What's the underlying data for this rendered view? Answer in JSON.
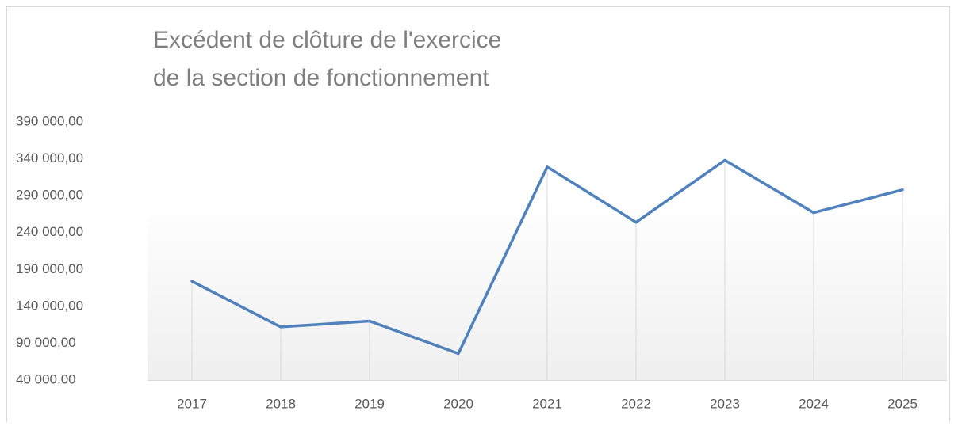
{
  "chart_data": {
    "type": "line",
    "title": [
      "Excédent de clôture de l'exercice",
      "de la section de fonctionnement"
    ],
    "categories": [
      "2017",
      "2018",
      "2019",
      "2020",
      "2021",
      "2022",
      "2023",
      "2024",
      "2025"
    ],
    "values": [
      174000,
      112000,
      120000,
      76000,
      329000,
      254000,
      338000,
      267000,
      298000
    ],
    "color": "#4f81bd",
    "ylim": [
      40000,
      390000
    ],
    "yticks": [
      {
        "value": 40000,
        "label": "40 000,00"
      },
      {
        "value": 90000,
        "label": "90 000,00"
      },
      {
        "value": 140000,
        "label": "140 000,00"
      },
      {
        "value": 190000,
        "label": "190 000,00"
      },
      {
        "value": 240000,
        "label": "240 000,00"
      },
      {
        "value": 290000,
        "label": "290 000,00"
      },
      {
        "value": 340000,
        "label": "340 000,00"
      },
      {
        "value": 390000,
        "label": "390 000,00"
      }
    ],
    "drop_lines": true
  }
}
